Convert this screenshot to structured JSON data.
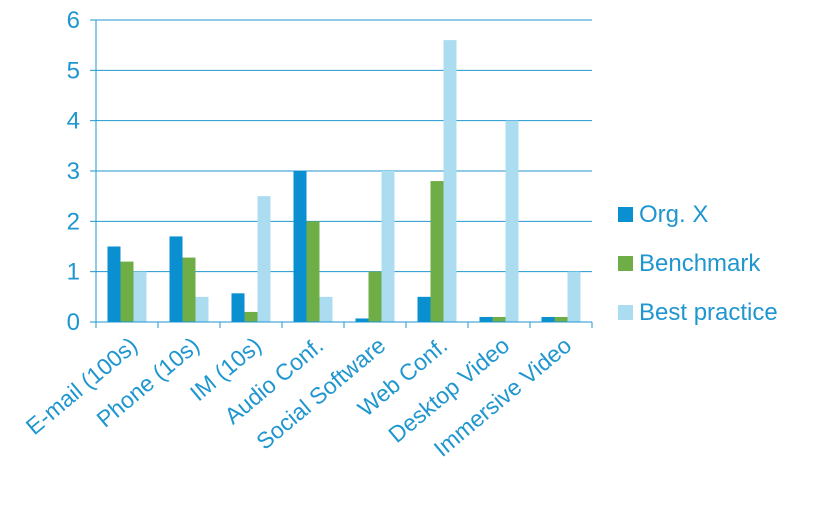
{
  "chart_data": {
    "type": "bar",
    "title": "",
    "xlabel": "",
    "ylabel": "",
    "categories": [
      "E-mail (100s)",
      "Phone (10s)",
      "IM (10s)",
      "Audio Conf.",
      "Social Software",
      "Web Conf.",
      "Desktop Video",
      "Immersive Video"
    ],
    "y_ticks": [
      "0",
      "1",
      "2",
      "3",
      "4",
      "5",
      "6"
    ],
    "ylim": [
      0,
      6
    ],
    "grid": true,
    "legend_position": "right",
    "series": [
      {
        "name": "Org. X",
        "color": "#0a8fd1",
        "values": [
          1.5,
          1.7,
          0.57,
          3.0,
          0.07,
          0.5,
          0.1,
          0.1
        ]
      },
      {
        "name": "Benchmark",
        "color": "#6fad47",
        "values": [
          1.2,
          1.28,
          0.2,
          2.0,
          1.0,
          2.8,
          0.1,
          0.1
        ]
      },
      {
        "name": "Best practice",
        "color": "#acdcef",
        "values": [
          1.0,
          0.5,
          2.5,
          0.5,
          3.0,
          5.6,
          4.0,
          1.0
        ]
      }
    ],
    "colors": {
      "text": "#1f96cf",
      "grid": "#1f96cf",
      "axis": "#1f96cf"
    }
  },
  "legend": {
    "items": [
      {
        "label": "Org. X",
        "color": "#0a8fd1",
        "icon": "square-swatch"
      },
      {
        "label": "Benchmark",
        "color": "#6fad47",
        "icon": "square-swatch"
      },
      {
        "label": "Best practice",
        "color": "#acdcef",
        "icon": "square-swatch"
      }
    ]
  }
}
